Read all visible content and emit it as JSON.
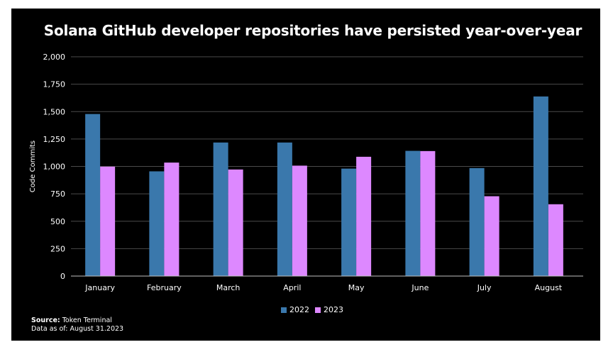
{
  "chart_data": {
    "type": "bar",
    "title": "Solana GitHub developer repositories have persisted year-over-year",
    "xlabel": "",
    "ylabel": "Code Commits",
    "ylim": [
      0,
      2000
    ],
    "yticks": [
      0,
      250,
      500,
      750,
      1000,
      1250,
      1500,
      1750,
      2000
    ],
    "ytick_labels": [
      "0",
      "250",
      "500",
      "750",
      "1,000",
      "1,250",
      "1,500",
      "1,750",
      "2,000"
    ],
    "categories": [
      "January",
      "February",
      "March",
      "April",
      "May",
      "June",
      "July",
      "August"
    ],
    "series": [
      {
        "name": "2022",
        "color": "#3a78ac",
        "values": [
          1478,
          955,
          1218,
          1218,
          980,
          1142,
          985,
          1638
        ]
      },
      {
        "name": "2023",
        "color": "#dd88ff",
        "values": [
          998,
          1035,
          972,
          1007,
          1088,
          1140,
          728,
          655
        ]
      }
    ],
    "grid": true,
    "legend_position": "bottom"
  },
  "footer": {
    "source_label": "Source:",
    "source_value": "Token Terminal",
    "asof_label": "Data as of:",
    "asof_value": "August 31.2023"
  }
}
